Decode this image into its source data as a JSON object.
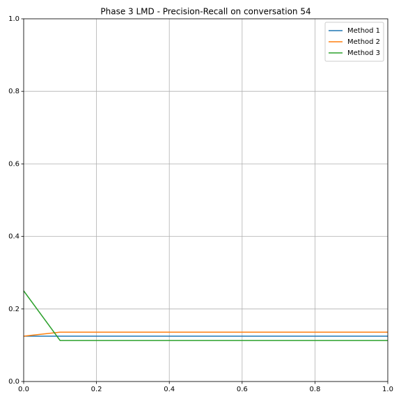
{
  "chart_data": {
    "type": "line",
    "title": "Phase 3 LMD - Precision-Recall on conversation 54",
    "x": [
      0,
      0.1,
      0.2,
      0.3,
      0.4,
      0.5,
      0.6,
      0.7,
      0.8,
      0.9,
      1.0
    ],
    "series": [
      {
        "name": "Method 1",
        "color": "#1f77b4",
        "values": [
          0.125,
          0.125,
          0.125,
          0.125,
          0.125,
          0.125,
          0.125,
          0.125,
          0.125,
          0.125,
          0.125
        ]
      },
      {
        "name": "Method 2",
        "color": "#ff7f0e",
        "values": [
          0.125,
          0.136,
          0.136,
          0.136,
          0.136,
          0.136,
          0.136,
          0.136,
          0.136,
          0.136,
          0.136
        ]
      },
      {
        "name": "Method 3",
        "color": "#2ca02c",
        "values": [
          0.25,
          0.113,
          0.113,
          0.113,
          0.113,
          0.113,
          0.113,
          0.113,
          0.113,
          0.113,
          0.113
        ]
      }
    ],
    "xlim": [
      0,
      1
    ],
    "ylim": [
      0,
      1
    ],
    "xticks": [
      {
        "value": 0,
        "label": "0.0"
      },
      0.2,
      0.4,
      0.6,
      0.8,
      {
        "value": 1,
        "label": "1.0"
      }
    ],
    "yticks": [
      {
        "value": 0,
        "label": "0.0"
      },
      0.2,
      0.4,
      0.6,
      0.8,
      {
        "value": 1,
        "label": "1.0"
      }
    ],
    "grid": true,
    "legend": "upper right"
  }
}
